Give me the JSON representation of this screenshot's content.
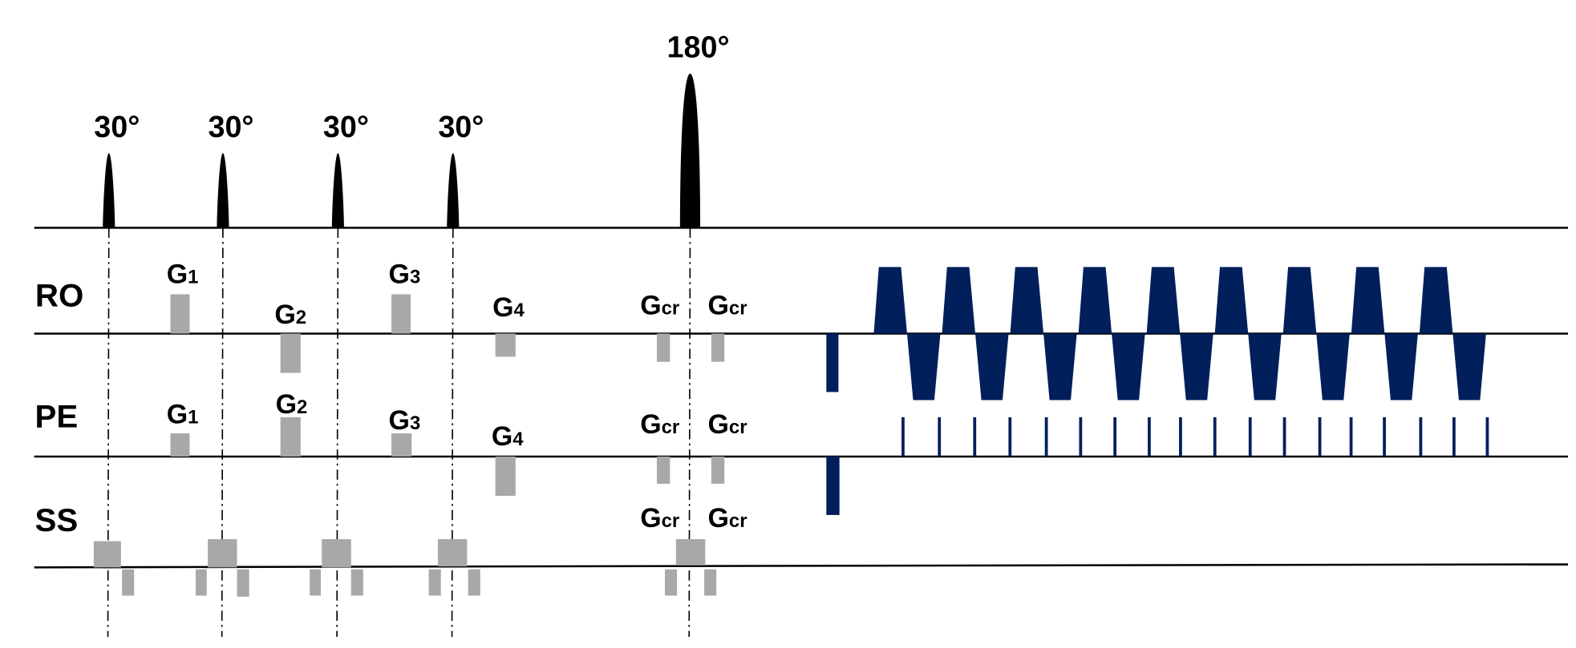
{
  "rf_pulses": [
    {
      "label": "30°"
    },
    {
      "label": "30°"
    },
    {
      "label": "30°"
    },
    {
      "label": "30°"
    },
    {
      "label": "180°"
    }
  ],
  "rows": [
    "RO",
    "PE",
    "SS"
  ],
  "ro_labels": [
    {
      "base": "G",
      "sub": "1"
    },
    {
      "base": "G",
      "sub": "2"
    },
    {
      "base": "G",
      "sub": "3"
    },
    {
      "base": "G",
      "sub": "4"
    },
    {
      "base": "G",
      "sub": "cr"
    },
    {
      "base": "G",
      "sub": "cr"
    }
  ],
  "pe_labels": [
    {
      "base": "G",
      "sub": "1"
    },
    {
      "base": "G",
      "sub": "2"
    },
    {
      "base": "G",
      "sub": "3"
    },
    {
      "base": "G",
      "sub": "4"
    },
    {
      "base": "G",
      "sub": "cr"
    },
    {
      "base": "G",
      "sub": "cr"
    }
  ],
  "ss_labels": [
    {
      "base": "G",
      "sub": "cr"
    },
    {
      "base": "G",
      "sub": "cr"
    }
  ]
}
